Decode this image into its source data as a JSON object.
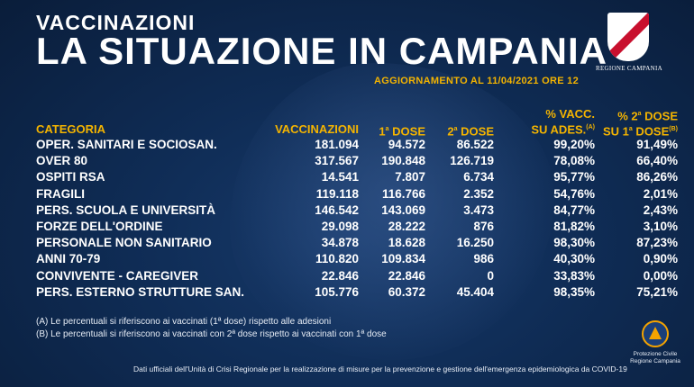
{
  "header": {
    "kicker": "VACCINAZIONI",
    "title": "LA SITUAZIONE IN CAMPANIA",
    "update": "AGGIORNAMENTO AL 11/04/2021 ORE 12"
  },
  "logo": {
    "text": "REGIONE CAMPANIA",
    "icon": "regione-campania-shield"
  },
  "colors": {
    "background": "#0f2c55",
    "accent": "#f4b400",
    "text": "#ffffff"
  },
  "table": {
    "headers": {
      "categoria": "CATEGORIA",
      "vaccinazioni": "VACCINAZIONI",
      "dose1_main": "1",
      "dose1_sup": "a",
      "dose1_rest": " DOSE",
      "dose2_main": "2",
      "dose2_sup": "a",
      "dose2_rest": " DOSE",
      "pvacc_line1": "% VACC.",
      "pvacc_line2": "SU ADES.",
      "pvacc_note": "(A)",
      "p2_line1_a": "% 2",
      "p2_line1_sup": "a",
      "p2_line1_b": " DOSE",
      "p2_line2_a": "SU 1",
      "p2_line2_sup": "a",
      "p2_line2_b": " DOSE",
      "p2_note": "(B)"
    },
    "rows": [
      {
        "categoria": "OPER. SANITARI E SOCIOSAN.",
        "vaccinazioni": "181.094",
        "dose1": "94.572",
        "dose2": "86.522",
        "pvacc": "99,20%",
        "p2": "91,49%"
      },
      {
        "categoria": "OVER 80",
        "vaccinazioni": "317.567",
        "dose1": "190.848",
        "dose2": "126.719",
        "pvacc": "78,08%",
        "p2": "66,40%"
      },
      {
        "categoria": "OSPITI RSA",
        "vaccinazioni": "14.541",
        "dose1": "7.807",
        "dose2": "6.734",
        "pvacc": "95,77%",
        "p2": "86,26%"
      },
      {
        "categoria": "FRAGILI",
        "vaccinazioni": "119.118",
        "dose1": "116.766",
        "dose2": "2.352",
        "pvacc": "54,76%",
        "p2": "2,01%"
      },
      {
        "categoria": "PERS. SCUOLA E UNIVERSITÀ",
        "vaccinazioni": "146.542",
        "dose1": "143.069",
        "dose2": "3.473",
        "pvacc": "84,77%",
        "p2": "2,43%"
      },
      {
        "categoria": "FORZE DELL'ORDINE",
        "vaccinazioni": "29.098",
        "dose1": "28.222",
        "dose2": "876",
        "pvacc": "81,82%",
        "p2": "3,10%"
      },
      {
        "categoria": "PERSONALE NON SANITARIO",
        "vaccinazioni": "34.878",
        "dose1": "18.628",
        "dose2": "16.250",
        "pvacc": "98,30%",
        "p2": "87,23%"
      },
      {
        "categoria": "ANNI 70-79",
        "vaccinazioni": "110.820",
        "dose1": "109.834",
        "dose2": "986",
        "pvacc": "40,30%",
        "p2": "0,90%"
      },
      {
        "categoria": "CONVIVENTE - CAREGIVER",
        "vaccinazioni": "22.846",
        "dose1": "22.846",
        "dose2": "0",
        "pvacc": "33,83%",
        "p2": "0,00%"
      },
      {
        "categoria": "PERS. ESTERNO STRUTTURE SAN.",
        "vaccinazioni": "105.776",
        "dose1": "60.372",
        "dose2": "45.404",
        "pvacc": "98,35%",
        "p2": "75,21%"
      }
    ]
  },
  "notes": {
    "a": "(A) Le percentuali si riferiscono ai vaccinati (1ª dose) rispetto alle adesioni",
    "b": "(B) Le percentuali si riferiscono ai vaccinati con 2ª dose rispetto ai vaccinati con 1ª dose"
  },
  "footer": "Dati ufficiali dell'Unità di Crisi Regionale per la realizzazione di misure per la prevenzione e gestione dell'emergenza epidemiologica da COVID-19",
  "protezione_civile": {
    "line1": "Protezione Civile",
    "line2": "Regione Campania",
    "icon": "protezione-civile-logo"
  }
}
